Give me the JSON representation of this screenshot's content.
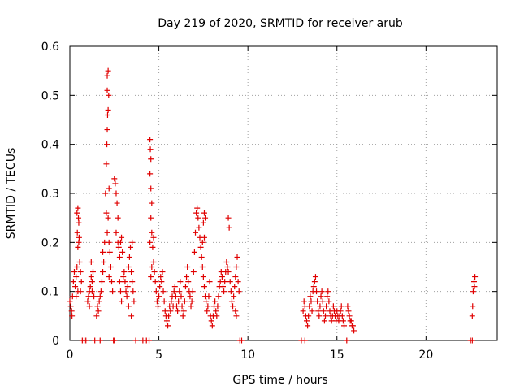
{
  "chart_data": {
    "type": "scatter",
    "title": "Day 219 of 2020, SRMTID for receiver arub",
    "xlabel": "GPS time / hours",
    "ylabel": "SRMTID / TECUs",
    "xlim": [
      0,
      24
    ],
    "ylim": [
      0,
      0.6
    ],
    "xticks": [
      0,
      5,
      10,
      15,
      20
    ],
    "yticks": [
      0,
      0.1,
      0.2,
      0.3,
      0.4,
      0.5,
      0.6
    ],
    "xtick_labels": [
      "0",
      "5",
      "10",
      "15",
      "20"
    ],
    "ytick_labels": [
      "0",
      "0.1",
      "0.2",
      "0.3",
      "0.4",
      "0.5",
      "0.6"
    ],
    "grid": true,
    "marker": "+",
    "color": "#e00000",
    "series": [
      {
        "name": "SRMTID",
        "points": [
          [
            0.0,
            0.08
          ],
          [
            0.05,
            0.07
          ],
          [
            0.1,
            0.06
          ],
          [
            0.12,
            0.05
          ],
          [
            0.15,
            0.09
          ],
          [
            0.2,
            0.12
          ],
          [
            0.25,
            0.14
          ],
          [
            0.3,
            0.11
          ],
          [
            0.35,
            0.13
          ],
          [
            0.4,
            0.15
          ],
          [
            0.45,
            0.19
          ],
          [
            0.5,
            0.2
          ],
          [
            0.52,
            0.21
          ],
          [
            0.55,
            0.16
          ],
          [
            0.6,
            0.14
          ],
          [
            0.6,
            0.1
          ],
          [
            0.65,
            0.12
          ],
          [
            0.35,
            0.09
          ],
          [
            0.45,
            0.1
          ],
          [
            0.4,
            0.26
          ],
          [
            0.45,
            0.27
          ],
          [
            0.5,
            0.24
          ],
          [
            0.42,
            0.22
          ],
          [
            0.48,
            0.25
          ],
          [
            0.7,
            0.0
          ],
          [
            0.8,
            0.0
          ],
          [
            0.9,
            0.0
          ],
          [
            1.0,
            0.08
          ],
          [
            1.05,
            0.09
          ],
          [
            1.1,
            0.1
          ],
          [
            1.15,
            0.11
          ],
          [
            1.2,
            0.13
          ],
          [
            1.25,
            0.12
          ],
          [
            1.3,
            0.14
          ],
          [
            1.1,
            0.07
          ],
          [
            1.2,
            0.16
          ],
          [
            1.25,
            0.1
          ],
          [
            1.35,
            0.09
          ],
          [
            1.4,
            0.0
          ],
          [
            1.7,
            0.0
          ],
          [
            1.5,
            0.05
          ],
          [
            1.55,
            0.07
          ],
          [
            1.6,
            0.06
          ],
          [
            1.65,
            0.08
          ],
          [
            1.7,
            0.09
          ],
          [
            1.75,
            0.1
          ],
          [
            1.8,
            0.12
          ],
          [
            1.85,
            0.14
          ],
          [
            1.9,
            0.16
          ],
          [
            1.85,
            0.18
          ],
          [
            1.95,
            0.2
          ],
          [
            2.0,
            0.3
          ],
          [
            2.05,
            0.26
          ],
          [
            2.1,
            0.22
          ],
          [
            2.15,
            0.25
          ],
          [
            2.2,
            0.31
          ],
          [
            2.05,
            0.36
          ],
          [
            2.08,
            0.4
          ],
          [
            2.1,
            0.43
          ],
          [
            2.12,
            0.46
          ],
          [
            2.15,
            0.47
          ],
          [
            2.18,
            0.5
          ],
          [
            2.1,
            0.54
          ],
          [
            2.15,
            0.55
          ],
          [
            2.1,
            0.51
          ],
          [
            2.2,
            0.2
          ],
          [
            2.25,
            0.18
          ],
          [
            2.3,
            0.15
          ],
          [
            2.35,
            0.12
          ],
          [
            2.4,
            0.1
          ],
          [
            2.2,
            0.13
          ],
          [
            2.45,
            0.0
          ],
          [
            2.5,
            0.0
          ],
          [
            2.5,
            0.33
          ],
          [
            2.55,
            0.32
          ],
          [
            2.6,
            0.3
          ],
          [
            2.65,
            0.28
          ],
          [
            2.7,
            0.25
          ],
          [
            2.6,
            0.22
          ],
          [
            2.7,
            0.2
          ],
          [
            2.75,
            0.19
          ],
          [
            2.8,
            0.17
          ],
          [
            2.85,
            0.2
          ],
          [
            2.9,
            0.21
          ],
          [
            2.95,
            0.18
          ],
          [
            2.8,
            0.12
          ],
          [
            2.85,
            0.1
          ],
          [
            2.9,
            0.08
          ],
          [
            3.0,
            0.13
          ],
          [
            3.05,
            0.14
          ],
          [
            3.1,
            0.12
          ],
          [
            3.15,
            0.1
          ],
          [
            3.2,
            0.09
          ],
          [
            3.25,
            0.11
          ],
          [
            3.3,
            0.15
          ],
          [
            3.35,
            0.17
          ],
          [
            3.4,
            0.19
          ],
          [
            3.45,
            0.14
          ],
          [
            3.5,
            0.12
          ],
          [
            3.55,
            0.1
          ],
          [
            3.6,
            0.08
          ],
          [
            3.3,
            0.07
          ],
          [
            3.45,
            0.05
          ],
          [
            3.5,
            0.2
          ],
          [
            3.7,
            0.0
          ],
          [
            4.1,
            0.0
          ],
          [
            4.3,
            0.0
          ],
          [
            4.45,
            0.0
          ],
          [
            4.5,
            0.41
          ],
          [
            4.52,
            0.39
          ],
          [
            4.55,
            0.37
          ],
          [
            4.5,
            0.34
          ],
          [
            4.55,
            0.31
          ],
          [
            4.6,
            0.28
          ],
          [
            4.55,
            0.25
          ],
          [
            4.6,
            0.22
          ],
          [
            4.5,
            0.2
          ],
          [
            4.65,
            0.19
          ],
          [
            4.7,
            0.16
          ],
          [
            4.75,
            0.14
          ],
          [
            4.8,
            0.12
          ],
          [
            4.85,
            0.1
          ],
          [
            4.7,
            0.21
          ],
          [
            4.6,
            0.15
          ],
          [
            4.55,
            0.13
          ],
          [
            4.9,
            0.08
          ],
          [
            4.95,
            0.07
          ],
          [
            5.0,
            0.09
          ],
          [
            5.05,
            0.11
          ],
          [
            5.1,
            0.13
          ],
          [
            5.15,
            0.12
          ],
          [
            5.2,
            0.14
          ],
          [
            5.25,
            0.1
          ],
          [
            5.3,
            0.08
          ],
          [
            5.35,
            0.06
          ],
          [
            5.4,
            0.05
          ],
          [
            5.45,
            0.04
          ],
          [
            5.5,
            0.03
          ],
          [
            5.55,
            0.05
          ],
          [
            5.6,
            0.07
          ],
          [
            5.65,
            0.06
          ],
          [
            5.7,
            0.08
          ],
          [
            5.75,
            0.09
          ],
          [
            5.8,
            0.07
          ],
          [
            5.85,
            0.1
          ],
          [
            5.9,
            0.11
          ],
          [
            5.95,
            0.09
          ],
          [
            6.0,
            0.07
          ],
          [
            6.05,
            0.06
          ],
          [
            6.1,
            0.08
          ],
          [
            6.15,
            0.1
          ],
          [
            6.2,
            0.12
          ],
          [
            6.25,
            0.09
          ],
          [
            6.3,
            0.07
          ],
          [
            6.35,
            0.05
          ],
          [
            6.4,
            0.06
          ],
          [
            6.45,
            0.08
          ],
          [
            6.5,
            0.11
          ],
          [
            6.55,
            0.13
          ],
          [
            6.6,
            0.15
          ],
          [
            6.65,
            0.12
          ],
          [
            6.7,
            0.1
          ],
          [
            6.75,
            0.09
          ],
          [
            6.8,
            0.07
          ],
          [
            6.85,
            0.08
          ],
          [
            6.9,
            0.1
          ],
          [
            6.95,
            0.14
          ],
          [
            7.0,
            0.18
          ],
          [
            7.05,
            0.22
          ],
          [
            7.1,
            0.26
          ],
          [
            7.15,
            0.27
          ],
          [
            7.2,
            0.25
          ],
          [
            7.25,
            0.23
          ],
          [
            7.3,
            0.21
          ],
          [
            7.35,
            0.19
          ],
          [
            7.4,
            0.17
          ],
          [
            7.45,
            0.15
          ],
          [
            7.5,
            0.13
          ],
          [
            7.55,
            0.11
          ],
          [
            7.6,
            0.09
          ],
          [
            7.65,
            0.08
          ],
          [
            7.7,
            0.06
          ],
          [
            7.75,
            0.07
          ],
          [
            7.8,
            0.09
          ],
          [
            7.85,
            0.12
          ],
          [
            7.5,
            0.24
          ],
          [
            7.55,
            0.26
          ],
          [
            7.6,
            0.25
          ],
          [
            7.55,
            0.21
          ],
          [
            7.45,
            0.2
          ],
          [
            7.9,
            0.05
          ],
          [
            7.95,
            0.04
          ],
          [
            8.0,
            0.03
          ],
          [
            8.05,
            0.05
          ],
          [
            8.1,
            0.07
          ],
          [
            8.15,
            0.08
          ],
          [
            8.2,
            0.06
          ],
          [
            8.25,
            0.05
          ],
          [
            8.3,
            0.07
          ],
          [
            8.35,
            0.09
          ],
          [
            8.4,
            0.11
          ],
          [
            8.45,
            0.12
          ],
          [
            8.5,
            0.14
          ],
          [
            8.55,
            0.13
          ],
          [
            8.6,
            0.11
          ],
          [
            8.65,
            0.1
          ],
          [
            8.7,
            0.12
          ],
          [
            8.75,
            0.14
          ],
          [
            8.8,
            0.16
          ],
          [
            8.85,
            0.15
          ],
          [
            8.9,
            0.25
          ],
          [
            8.95,
            0.23
          ],
          [
            8.9,
            0.14
          ],
          [
            9.0,
            0.12
          ],
          [
            9.05,
            0.1
          ],
          [
            9.1,
            0.08
          ],
          [
            9.15,
            0.07
          ],
          [
            9.2,
            0.09
          ],
          [
            9.25,
            0.11
          ],
          [
            9.3,
            0.13
          ],
          [
            9.35,
            0.15
          ],
          [
            9.4,
            0.17
          ],
          [
            9.45,
            0.12
          ],
          [
            9.5,
            0.1
          ],
          [
            9.3,
            0.06
          ],
          [
            9.35,
            0.05
          ],
          [
            9.55,
            0.0
          ],
          [
            9.65,
            0.0
          ],
          [
            13.0,
            0.0
          ],
          [
            13.2,
            0.0
          ],
          [
            13.1,
            0.06
          ],
          [
            13.15,
            0.08
          ],
          [
            13.2,
            0.07
          ],
          [
            13.25,
            0.05
          ],
          [
            13.3,
            0.04
          ],
          [
            13.35,
            0.03
          ],
          [
            13.4,
            0.05
          ],
          [
            13.45,
            0.07
          ],
          [
            13.5,
            0.09
          ],
          [
            13.55,
            0.08
          ],
          [
            13.6,
            0.06
          ],
          [
            13.65,
            0.1
          ],
          [
            13.7,
            0.11
          ],
          [
            13.75,
            0.12
          ],
          [
            13.8,
            0.13
          ],
          [
            13.85,
            0.1
          ],
          [
            13.9,
            0.08
          ],
          [
            13.95,
            0.06
          ],
          [
            14.0,
            0.05
          ],
          [
            14.05,
            0.07
          ],
          [
            14.1,
            0.09
          ],
          [
            14.15,
            0.1
          ],
          [
            14.2,
            0.08
          ],
          [
            14.25,
            0.06
          ],
          [
            14.3,
            0.04
          ],
          [
            14.35,
            0.05
          ],
          [
            14.4,
            0.07
          ],
          [
            14.45,
            0.09
          ],
          [
            14.5,
            0.1
          ],
          [
            14.55,
            0.08
          ],
          [
            14.6,
            0.06
          ],
          [
            14.65,
            0.05
          ],
          [
            14.7,
            0.04
          ],
          [
            14.75,
            0.05
          ],
          [
            14.8,
            0.07
          ],
          [
            14.85,
            0.06
          ],
          [
            14.9,
            0.05
          ],
          [
            14.95,
            0.04
          ],
          [
            15.0,
            0.06
          ],
          [
            15.05,
            0.05
          ],
          [
            15.1,
            0.04
          ],
          [
            15.15,
            0.05
          ],
          [
            15.2,
            0.06
          ],
          [
            15.25,
            0.07
          ],
          [
            15.3,
            0.05
          ],
          [
            15.35,
            0.04
          ],
          [
            15.4,
            0.03
          ],
          [
            15.55,
            0.0
          ],
          [
            15.6,
            0.07
          ],
          [
            15.65,
            0.06
          ],
          [
            15.7,
            0.05
          ],
          [
            15.75,
            0.04
          ],
          [
            15.8,
            0.04
          ],
          [
            15.85,
            0.03
          ],
          [
            15.9,
            0.03
          ],
          [
            15.95,
            0.02
          ],
          [
            22.5,
            0.0
          ],
          [
            22.6,
            0.0
          ],
          [
            22.6,
            0.05
          ],
          [
            22.62,
            0.07
          ],
          [
            22.65,
            0.1
          ],
          [
            22.7,
            0.12
          ],
          [
            22.75,
            0.13
          ],
          [
            22.72,
            0.11
          ]
        ]
      }
    ]
  }
}
